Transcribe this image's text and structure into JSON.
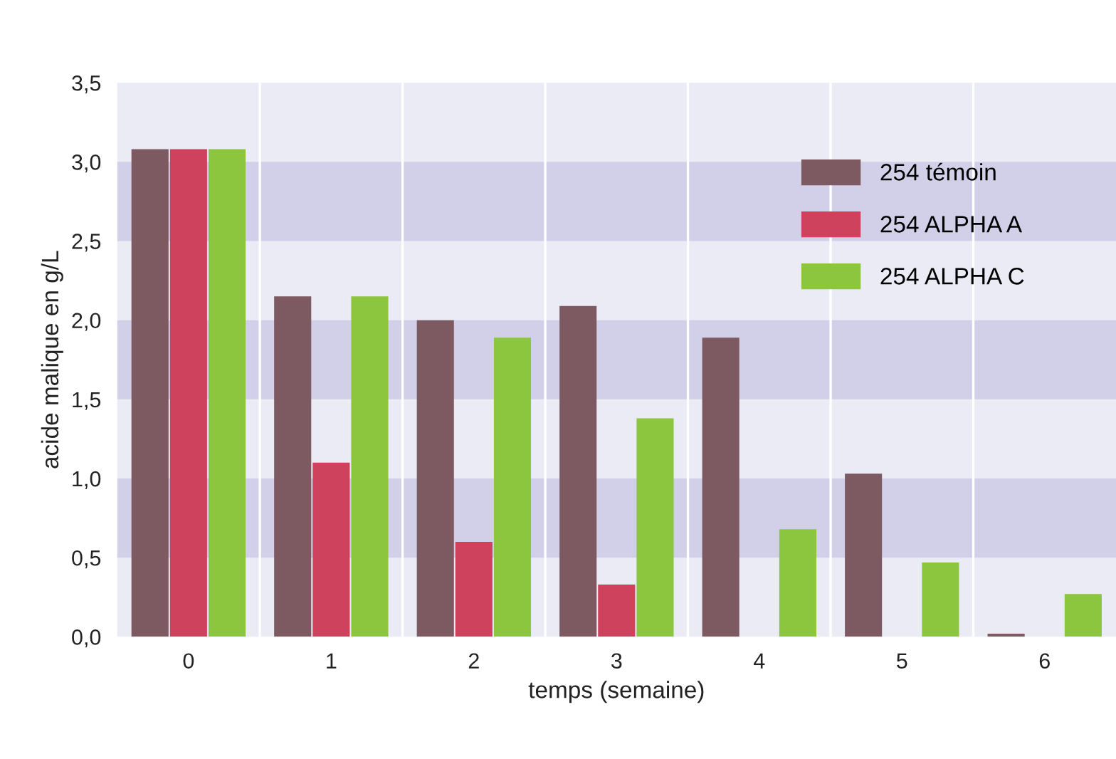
{
  "chart_data": {
    "type": "bar",
    "xlabel": "temps (semaine)",
    "ylabel": "acide malique en g/L",
    "categories": [
      "0",
      "1",
      "2",
      "3",
      "4",
      "5",
      "6"
    ],
    "series": [
      {
        "name": "254 témoin",
        "color": "#7d5a62",
        "values": [
          3.08,
          2.15,
          2.0,
          2.09,
          1.89,
          1.03,
          0.02
        ]
      },
      {
        "name": "254 ALPHA A",
        "color": "#cf425e",
        "values": [
          3.08,
          1.1,
          0.6,
          0.33,
          null,
          null,
          null
        ]
      },
      {
        "name": "254 ALPHA C",
        "color": "#8cc63f",
        "values": [
          3.08,
          2.15,
          1.89,
          1.38,
          0.68,
          0.47,
          0.27
        ]
      }
    ],
    "ylim": [
      0,
      3.5
    ],
    "yticks": [
      {
        "value": 0,
        "label": "0,0"
      },
      {
        "value": 0.5,
        "label": "0,5"
      },
      {
        "value": 1.0,
        "label": "1,0"
      },
      {
        "value": 1.5,
        "label": "1,5"
      },
      {
        "value": 2.0,
        "label": "2,0"
      },
      {
        "value": 2.5,
        "label": "2,5"
      },
      {
        "value": 3.0,
        "label": "3,0"
      },
      {
        "value": 3.5,
        "label": "3,5"
      }
    ],
    "bands": [
      {
        "axis": "y",
        "from": 0.5,
        "to": 1.0,
        "color": "#d2d0e8"
      },
      {
        "axis": "y",
        "from": 1.5,
        "to": 2.0,
        "color": "#d2d0e8"
      },
      {
        "axis": "y",
        "from": 2.5,
        "to": 3.0,
        "color": "#d2d0e8"
      }
    ],
    "grid": "x",
    "legend": "top right"
  }
}
